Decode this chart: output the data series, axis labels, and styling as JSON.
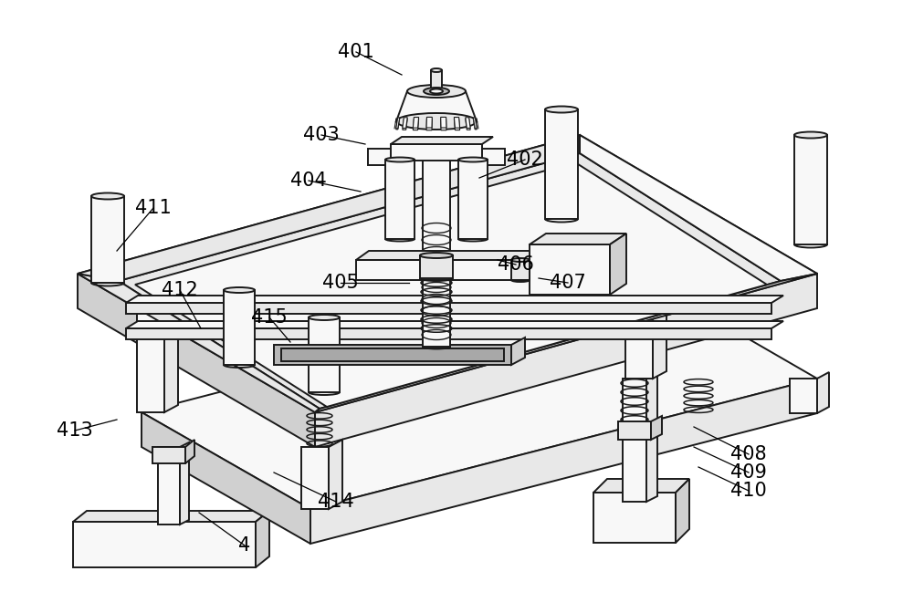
{
  "background_color": "#ffffff",
  "line_color": "#1a1a1a",
  "fc_light": "#f8f8f8",
  "fc_mid": "#e8e8e8",
  "fc_dark": "#d0d0d0",
  "fc_darker": "#b8b8b8",
  "figsize": [
    10.0,
    6.49
  ],
  "dpi": 100,
  "labels": [
    [
      "401",
      390,
      57,
      440,
      82
    ],
    [
      "402",
      575,
      175,
      525,
      195
    ],
    [
      "403",
      352,
      148,
      400,
      158
    ],
    [
      "404",
      338,
      198,
      395,
      210
    ],
    [
      "405",
      373,
      310,
      448,
      310
    ],
    [
      "406",
      565,
      290,
      545,
      285
    ],
    [
      "407",
      622,
      310,
      590,
      305
    ],
    [
      "408",
      820,
      498,
      760,
      468
    ],
    [
      "409",
      820,
      518,
      760,
      490
    ],
    [
      "410",
      820,
      538,
      765,
      512
    ],
    [
      "411",
      168,
      228,
      128,
      275
    ],
    [
      "412",
      197,
      318,
      220,
      360
    ],
    [
      "413",
      82,
      472,
      128,
      460
    ],
    [
      "414",
      368,
      550,
      300,
      518
    ],
    [
      "415",
      295,
      348,
      318,
      375
    ],
    [
      "4",
      268,
      598,
      218,
      562
    ]
  ]
}
